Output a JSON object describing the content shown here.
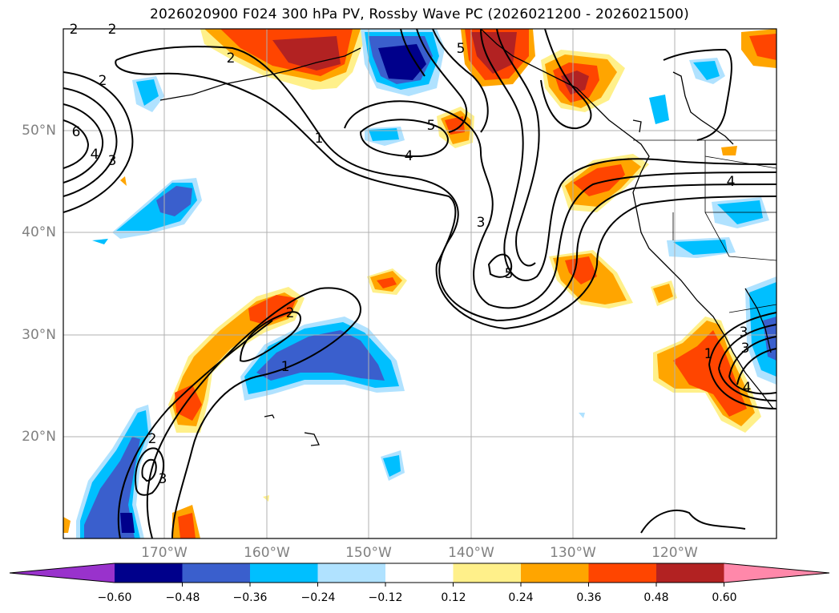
{
  "title": "2026020900 F024 300 hPa PV, Rossby Wave PC (2026021200 - 2026021500)",
  "axes": {
    "lat_labels": [
      "50°N",
      "40°N",
      "30°N",
      "20°N"
    ],
    "lon_labels": [
      "170°W",
      "160°W",
      "150°W",
      "140°W",
      "130°W",
      "120°W"
    ]
  },
  "contour_labels": [
    "2",
    "2",
    "2",
    "2",
    "6",
    "4",
    "3",
    "5",
    "1",
    "4",
    "5",
    "3",
    "5",
    "4",
    "2",
    "1",
    "2",
    "3",
    "1",
    "3",
    "3",
    "4"
  ],
  "colorbar": {
    "ticks": [
      "−0.60",
      "−0.48",
      "−0.36",
      "−0.24",
      "−0.12",
      "0.12",
      "0.24",
      "0.36",
      "0.48",
      "0.60"
    ],
    "colors": [
      "#9932cc",
      "#00008b",
      "#3a5fcd",
      "#00bfff",
      "#b0e2ff",
      "#ffffff",
      "#fff08a",
      "#ffa500",
      "#ff4500",
      "#b22222",
      "#ff88aa"
    ]
  }
}
